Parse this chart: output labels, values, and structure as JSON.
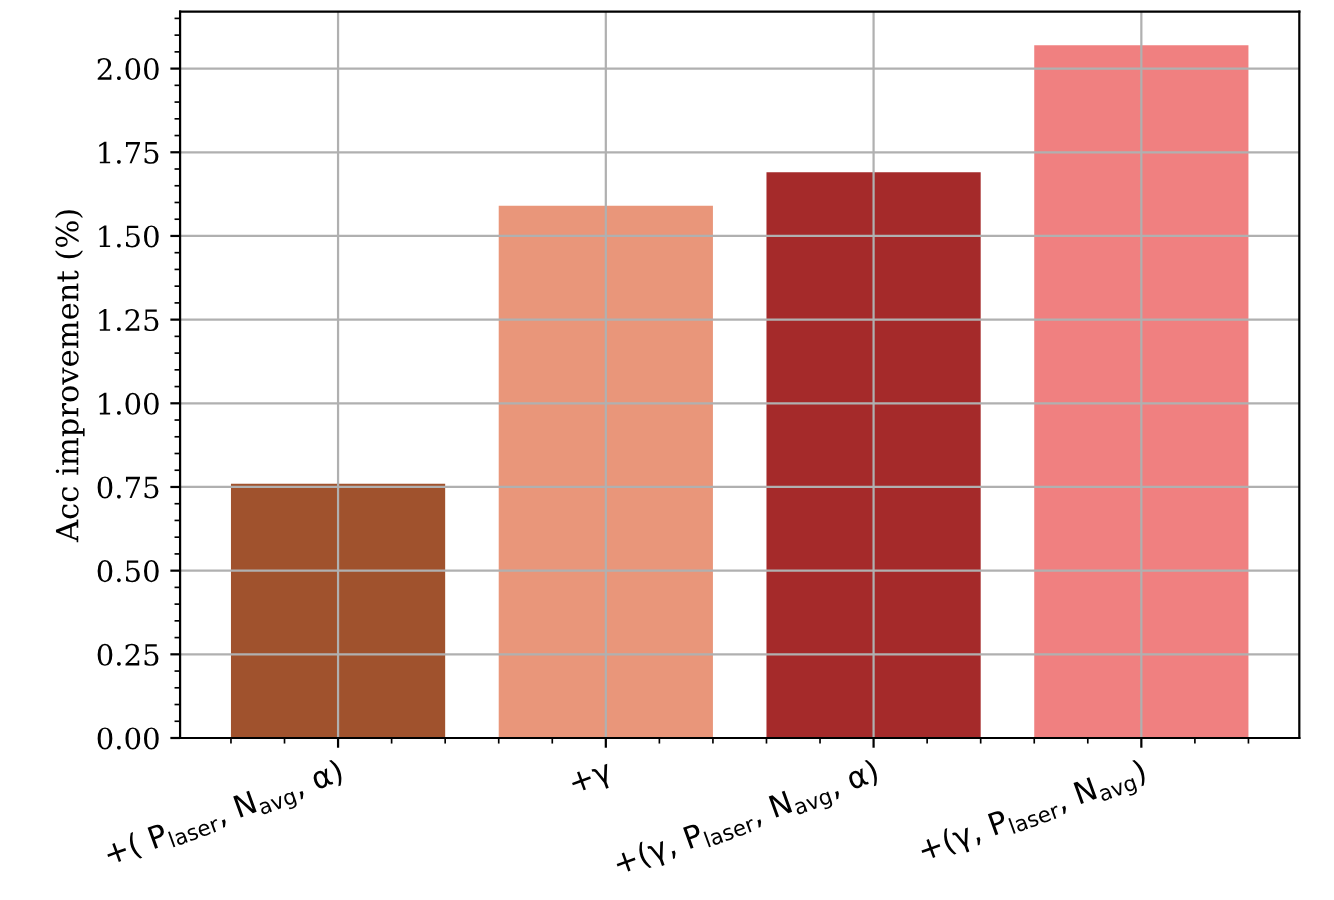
{
  "chart_data": {
    "type": "bar",
    "ylabel": "Acc improvement (%)",
    "categories": [
      "+( P$_{laser}$, N$_{avg}$, α)",
      "+γ",
      "+(γ, P$_{laser}$, N$_{avg}$, α)",
      "+(γ, P$_{laser}$, N$_{avg}$)"
    ],
    "values": [
      0.76,
      1.59,
      1.69,
      2.07
    ],
    "colors": [
      "#a0522d",
      "#e9967a",
      "#a52a2a",
      "#f08080"
    ],
    "ylim": [
      0,
      2.17
    ],
    "yticks": [
      {
        "value": 0,
        "label": "0.00"
      },
      {
        "value": 0.25,
        "label": "0.25"
      },
      {
        "value": 0.5,
        "label": "0.50"
      },
      {
        "value": 0.75,
        "label": "0.75"
      },
      {
        "value": 1.0,
        "label": "1.00"
      },
      {
        "value": 1.25,
        "label": "1.25"
      },
      {
        "value": 1.5,
        "label": "1.50"
      },
      {
        "value": 1.75,
        "label": "1.75"
      },
      {
        "value": 2.0,
        "label": "2.00"
      }
    ],
    "grid": true
  }
}
